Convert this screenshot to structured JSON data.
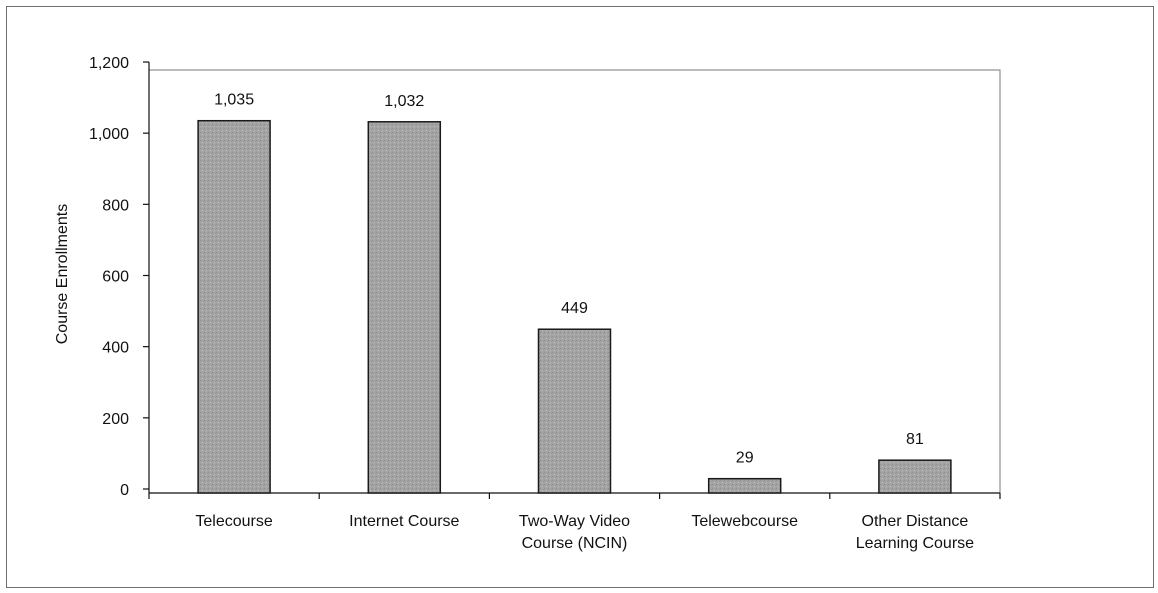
{
  "chart_data": {
    "type": "bar",
    "title": "",
    "xlabel": "",
    "ylabel": "Course Enrollments",
    "ylim": [
      0,
      1200
    ],
    "yticks": [
      0,
      200,
      400,
      600,
      800,
      1000,
      1200
    ],
    "ytick_labels": [
      "0",
      "200",
      "400",
      "600",
      "800",
      "1,000",
      "1,200"
    ],
    "categories": [
      [
        "Telecourse"
      ],
      [
        "Internet Course"
      ],
      [
        "Two-Way Video",
        "Course (NCIN)"
      ],
      [
        "Telewebcourse"
      ],
      [
        "Other Distance",
        "Learning Course"
      ]
    ],
    "values": [
      1035,
      1032,
      449,
      29,
      81
    ],
    "value_labels": [
      "1,035",
      "1,032",
      "449",
      "29",
      "81"
    ],
    "bar_color": "#a9a9a9",
    "bar_edge_color": "#1a1a1a",
    "grid": false,
    "legend": "none"
  }
}
